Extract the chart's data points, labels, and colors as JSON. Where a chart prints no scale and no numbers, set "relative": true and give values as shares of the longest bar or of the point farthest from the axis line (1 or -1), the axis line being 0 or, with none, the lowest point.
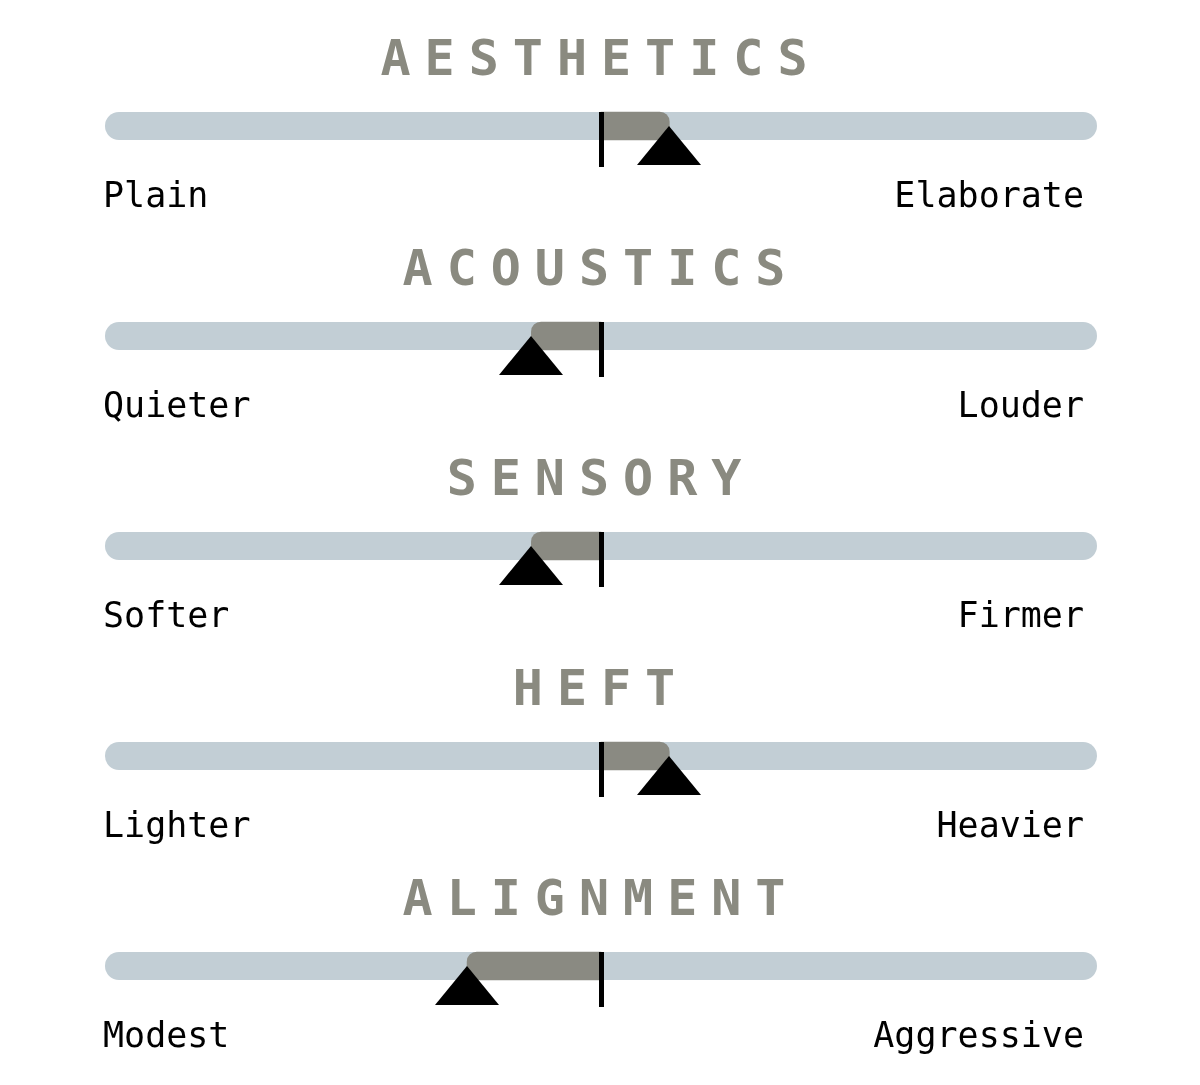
{
  "chart_data": {
    "type": "bar",
    "orientation": "horizontal",
    "relative": true,
    "categories": [
      "AESTHETICS",
      "ACOUSTICS",
      "SENSORY",
      "HEFT",
      "ALIGNMENT"
    ],
    "values": [
      0.51,
      -0.52,
      -0.52,
      0.51,
      -1
    ],
    "color": "#8a8a82",
    "annotations": [
      "Plain",
      "Elaborate",
      "Quieter",
      "Louder",
      "Softer",
      "Firmer",
      "Lighter",
      "Heavier",
      "Modest",
      "Aggressive"
    ]
  }
}
